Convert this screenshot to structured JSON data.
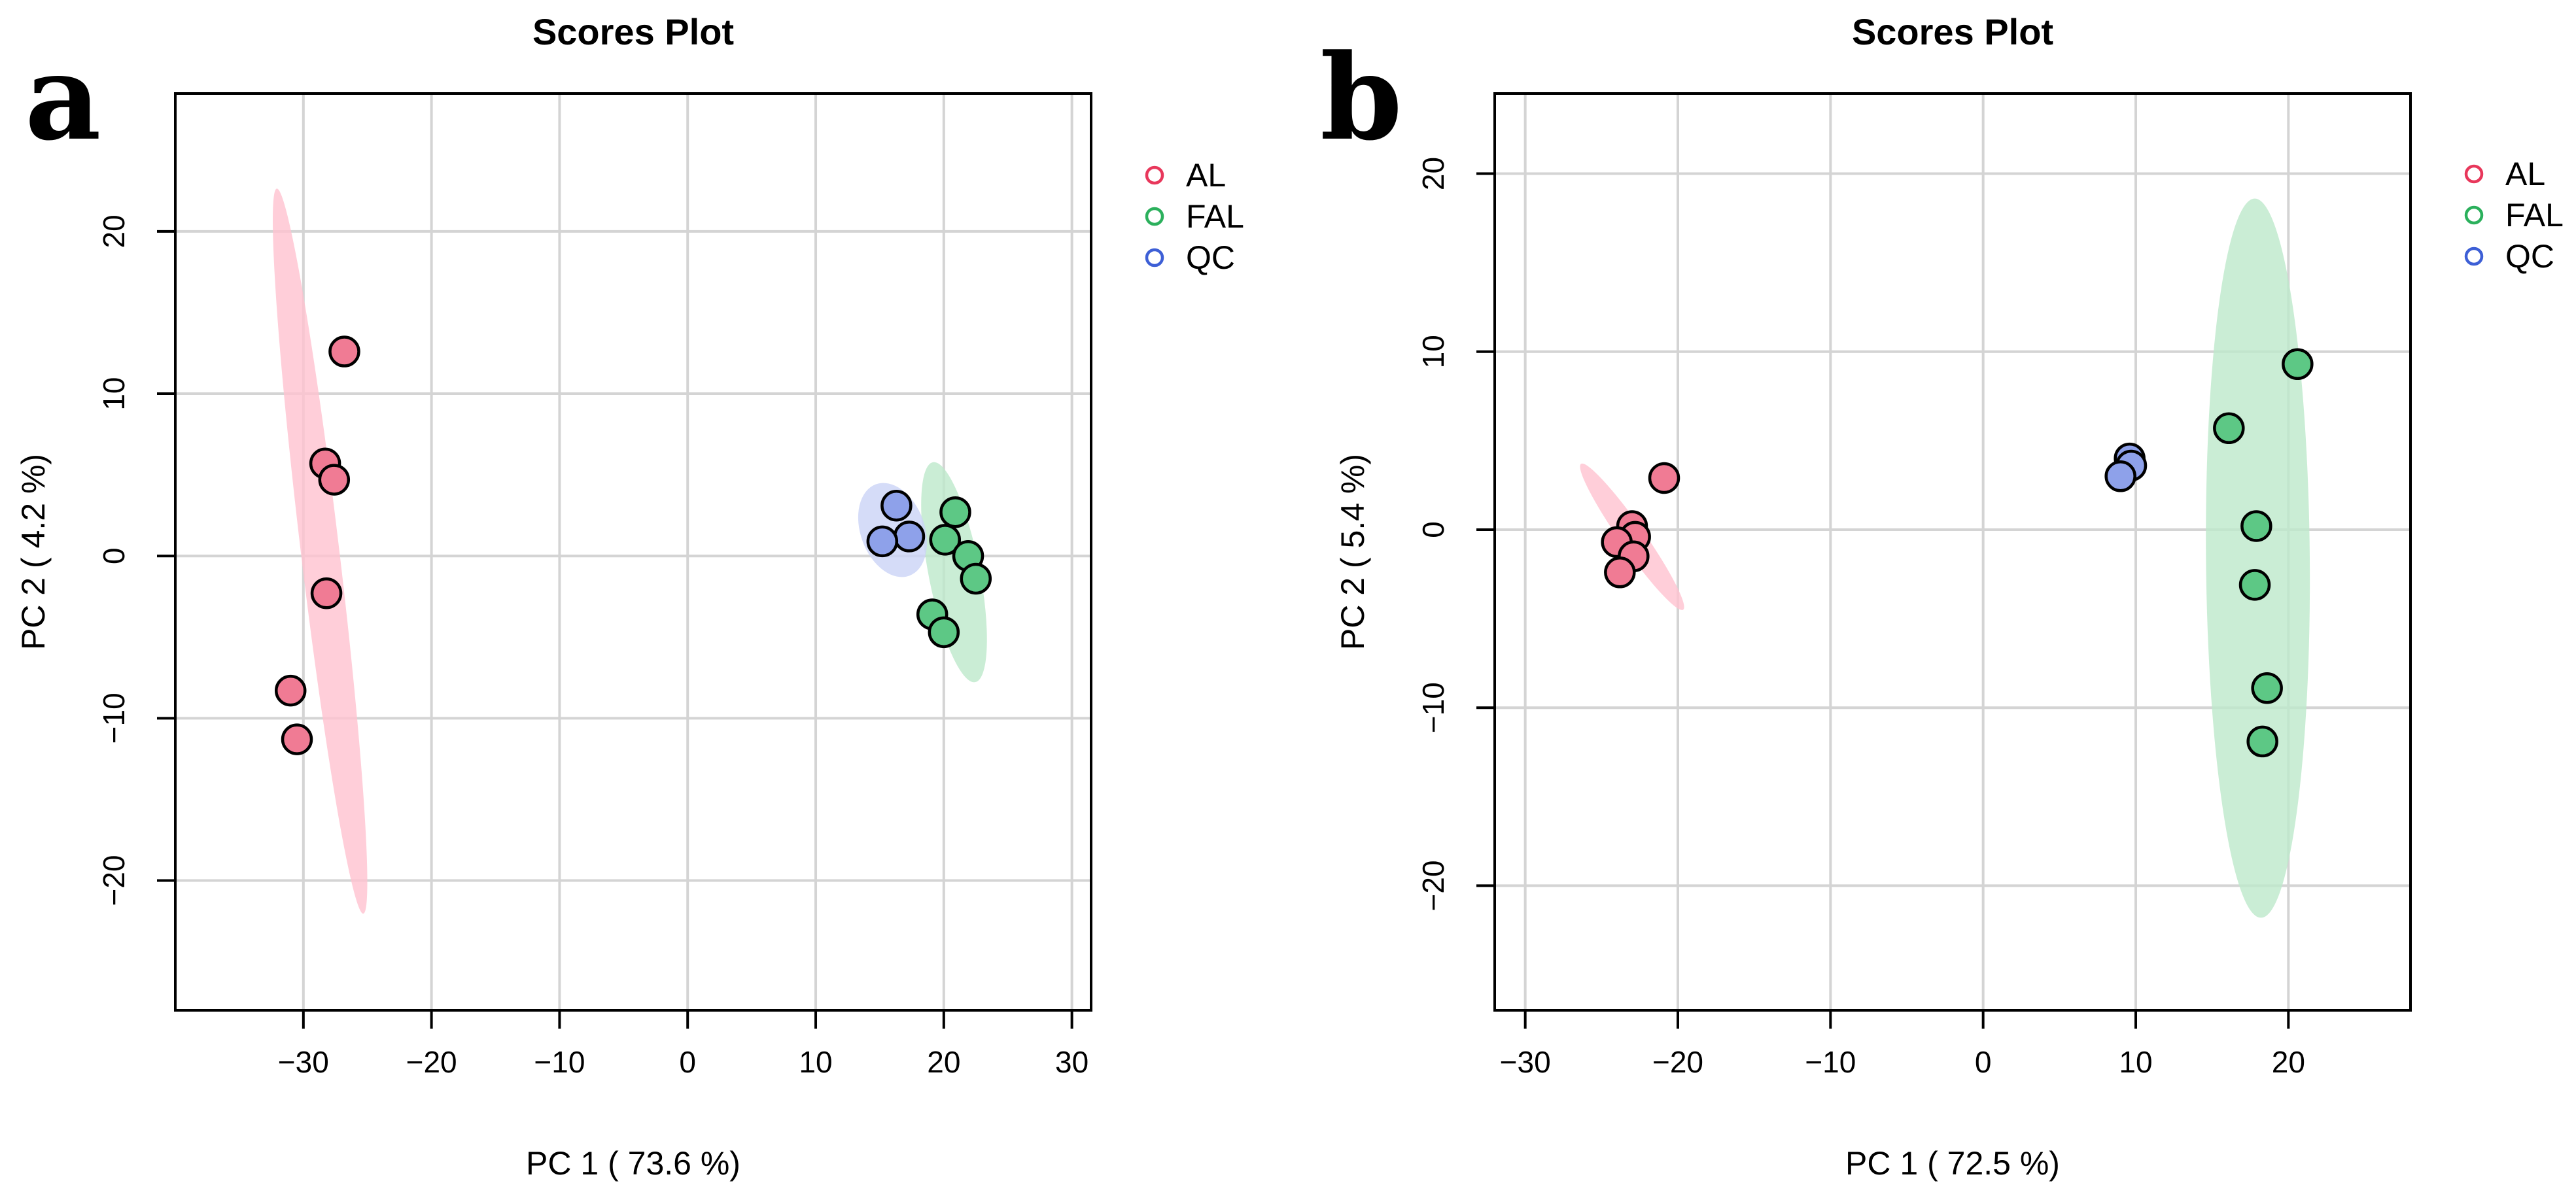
{
  "chart_data": [
    {
      "type": "scatter",
      "panel_label": "a",
      "title": "Scores Plot",
      "xlabel": "PC 1 ( 73.6 %)",
      "ylabel": "PC 2 ( 4.2 %)",
      "xlim": [
        -40,
        31.5
      ],
      "ylim": [
        -28,
        28.5
      ],
      "xticks": [
        -30,
        -20,
        -10,
        0,
        10,
        20,
        30
      ],
      "yticks": [
        -20,
        -10,
        0,
        10,
        20
      ],
      "xtick_labels": [
        "−30",
        "−20",
        "−10",
        "0",
        "10",
        "20",
        "30"
      ],
      "ytick_labels": [
        "−20",
        "−10",
        "0",
        "10",
        "20"
      ],
      "grid": true,
      "legend": [
        {
          "name": "AL",
          "color": "#e8375b"
        },
        {
          "name": "FAL",
          "color": "#2bb05c"
        },
        {
          "name": "QC",
          "color": "#3d5fd6"
        }
      ],
      "series": [
        {
          "name": "AL",
          "fill": "#f07b94",
          "ellipse_fill": "#ffc2cf",
          "ellipse": {
            "cx": -28.7,
            "cy": 0.3,
            "rx": 1.5,
            "ry": 22.5,
            "tilt_deg": -6.8
          },
          "points": [
            [
              -26.8,
              12.6
            ],
            [
              -28.3,
              5.7
            ],
            [
              -27.6,
              4.7
            ],
            [
              -28.2,
              -2.3
            ],
            [
              -31.0,
              -8.3
            ],
            [
              -30.5,
              -11.3
            ]
          ]
        },
        {
          "name": "FAL",
          "fill": "#5dc885",
          "ellipse_fill": "#bde9cb",
          "ellipse": {
            "cx": 20.8,
            "cy": -1.0,
            "rx": 2.0,
            "ry": 6.9,
            "tilt_deg": -10.9
          },
          "points": [
            [
              20.9,
              2.7
            ],
            [
              20.1,
              1.0
            ],
            [
              21.9,
              0.0
            ],
            [
              22.5,
              -1.4
            ],
            [
              19.1,
              -3.6
            ],
            [
              20.0,
              -4.7
            ]
          ]
        },
        {
          "name": "QC",
          "fill": "#8ea1ea",
          "ellipse_fill": "#cad3f6",
          "ellipse": {
            "cx": 16.0,
            "cy": 1.6,
            "rx": 2.5,
            "ry": 3.0,
            "tilt_deg": -20
          },
          "points": [
            [
              16.3,
              3.1
            ],
            [
              17.3,
              1.2
            ],
            [
              15.2,
              0.9
            ]
          ]
        }
      ]
    },
    {
      "type": "scatter",
      "panel_label": "b",
      "title": "Scores Plot",
      "xlabel": "PC 1 ( 72.5 %)",
      "ylabel": "PC 2 ( 5.4 %)",
      "xlim": [
        -32,
        28
      ],
      "ylim": [
        -27,
        24.5
      ],
      "xticks": [
        -30,
        -20,
        -10,
        0,
        10,
        20
      ],
      "yticks": [
        -20,
        -10,
        0,
        10,
        20
      ],
      "xtick_labels": [
        "−30",
        "−20",
        "−10",
        "0",
        "10",
        "20"
      ],
      "ytick_labels": [
        "−20",
        "−10",
        "0",
        "10",
        "20"
      ],
      "grid": true,
      "legend": [
        {
          "name": "AL",
          "color": "#e8375b"
        },
        {
          "name": "FAL",
          "color": "#2bb05c"
        },
        {
          "name": "QC",
          "color": "#3d5fd6"
        }
      ],
      "series": [
        {
          "name": "AL",
          "fill": "#f07b94",
          "ellipse_fill": "#ffc2cf",
          "ellipse": {
            "cx": -23.0,
            "cy": -0.4,
            "rx": 0.8,
            "ry": 5.0,
            "tilt_deg": -35
          },
          "points": [
            [
              -20.9,
              2.9
            ],
            [
              -23.0,
              0.2
            ],
            [
              -22.8,
              -0.4
            ],
            [
              -24.0,
              -0.7
            ],
            [
              -22.9,
              -1.5
            ],
            [
              -23.8,
              -2.4
            ]
          ]
        },
        {
          "name": "FAL",
          "fill": "#5dc885",
          "ellipse_fill": "#bde9cb",
          "ellipse": {
            "cx": 18.0,
            "cy": -1.6,
            "rx": 3.4,
            "ry": 20.2,
            "tilt_deg": -0.5
          },
          "points": [
            [
              20.6,
              9.3
            ],
            [
              16.1,
              5.7
            ],
            [
              17.9,
              0.2
            ],
            [
              17.8,
              -3.1
            ],
            [
              18.6,
              -8.9
            ],
            [
              18.3,
              -11.9
            ]
          ]
        },
        {
          "name": "QC",
          "fill": "#8ea1ea",
          "ellipse_fill": "#cad3f6",
          "ellipse": {
            "cx": 9.4,
            "cy": 3.6,
            "rx": 0.5,
            "ry": 0.8,
            "tilt_deg": -45
          },
          "points": [
            [
              9.6,
              4.0
            ],
            [
              9.7,
              3.6
            ],
            [
              9.0,
              3.0
            ]
          ]
        }
      ]
    }
  ]
}
